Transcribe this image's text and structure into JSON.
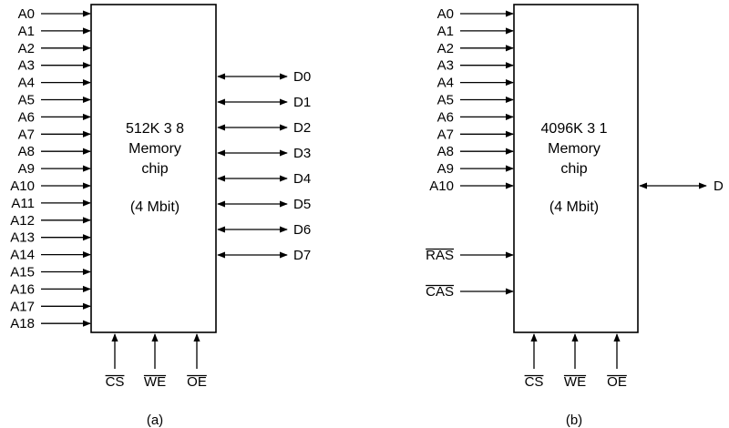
{
  "chip_a": {
    "address_pins": [
      "A0",
      "A1",
      "A2",
      "A3",
      "A4",
      "A5",
      "A6",
      "A7",
      "A8",
      "A9",
      "A10",
      "A11",
      "A12",
      "A13",
      "A14",
      "A15",
      "A16",
      "A17",
      "A18"
    ],
    "data_pins": [
      "D0",
      "D1",
      "D2",
      "D3",
      "D4",
      "D5",
      "D6",
      "D7"
    ],
    "control_pins": [
      "CS",
      "WE",
      "OE"
    ],
    "text_lines": [
      "512K 3 8",
      "Memory",
      "chip",
      "(4 Mbit)"
    ],
    "caption": "(a)"
  },
  "chip_b": {
    "address_pins": [
      "A0",
      "A1",
      "A2",
      "A3",
      "A4",
      "A5",
      "A6",
      "A7",
      "A8",
      "A9",
      "A10"
    ],
    "data_pins": [
      "D"
    ],
    "strobe_pins": [
      "RAS",
      "CAS"
    ],
    "control_pins": [
      "CS",
      "WE",
      "OE"
    ],
    "text_lines": [
      "4096K 3 1",
      "Memory",
      "chip",
      "(4 Mbit)"
    ],
    "caption": "(b)"
  }
}
